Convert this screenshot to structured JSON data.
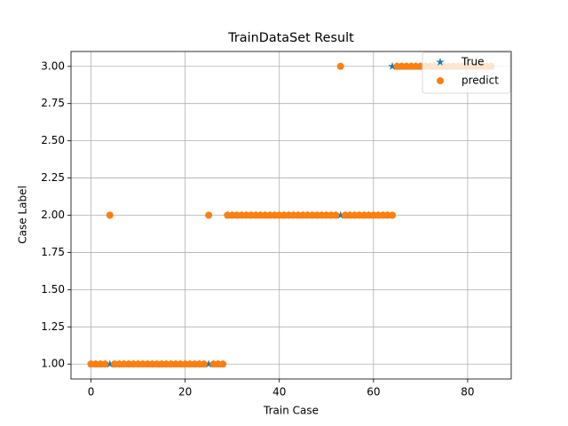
{
  "chart_data": {
    "type": "scatter",
    "title": "TrainDataSet Result",
    "x_label": "Train Case",
    "y_label": "Case Label",
    "x": [
      0,
      1,
      2,
      3,
      4,
      5,
      6,
      7,
      8,
      9,
      10,
      11,
      12,
      13,
      14,
      15,
      16,
      17,
      18,
      19,
      20,
      21,
      22,
      23,
      24,
      25,
      26,
      27,
      28,
      29,
      30,
      31,
      32,
      33,
      34,
      35,
      36,
      37,
      38,
      39,
      40,
      41,
      42,
      43,
      44,
      45,
      46,
      47,
      48,
      49,
      50,
      51,
      52,
      53,
      54,
      55,
      56,
      57,
      58,
      59,
      60,
      61,
      62,
      63,
      64,
      65,
      66,
      67,
      68,
      69,
      70,
      71,
      72,
      73,
      74,
      75,
      76,
      77,
      78,
      79,
      80,
      81,
      82,
      83,
      84,
      85
    ],
    "series": [
      {
        "name": "True",
        "color": "#1f77b4",
        "marker": "star",
        "values": [
          1,
          1,
          1,
          1,
          1,
          1,
          1,
          1,
          1,
          1,
          1,
          1,
          1,
          1,
          1,
          1,
          1,
          1,
          1,
          1,
          1,
          1,
          1,
          1,
          1,
          1,
          1,
          1,
          1,
          2,
          2,
          2,
          2,
          2,
          2,
          2,
          2,
          2,
          2,
          2,
          2,
          2,
          2,
          2,
          2,
          2,
          2,
          2,
          2,
          2,
          2,
          2,
          2,
          2,
          2,
          2,
          2,
          2,
          2,
          2,
          2,
          2,
          2,
          2,
          3,
          3,
          3,
          3,
          3,
          3,
          3,
          3,
          3,
          3,
          3,
          3,
          3,
          3,
          3,
          3,
          3,
          3,
          3,
          3,
          3,
          3
        ]
      },
      {
        "name": "predict",
        "color": "#ff7f0e",
        "marker": "circle",
        "values": [
          1,
          1,
          1,
          1,
          2,
          1,
          1,
          1,
          1,
          1,
          1,
          1,
          1,
          1,
          1,
          1,
          1,
          1,
          1,
          1,
          1,
          1,
          1,
          1,
          1,
          2,
          1,
          1,
          1,
          2,
          2,
          2,
          2,
          2,
          2,
          2,
          2,
          2,
          2,
          2,
          2,
          2,
          2,
          2,
          2,
          2,
          2,
          2,
          2,
          2,
          2,
          2,
          2,
          3,
          2,
          2,
          2,
          2,
          2,
          2,
          2,
          2,
          2,
          2,
          2,
          3,
          3,
          3,
          3,
          3,
          3,
          3,
          3,
          3,
          3,
          3,
          3,
          3,
          3,
          3,
          3,
          3,
          3,
          3,
          3,
          3
        ]
      }
    ],
    "xlim": [
      -4.25,
      89.25
    ],
    "ylim": [
      0.9,
      3.1
    ],
    "xticks": [
      0,
      20,
      40,
      60,
      80
    ],
    "yticks": [
      {
        "value": 1,
        "label": "1.00"
      },
      {
        "value": 1.25,
        "label": "1.25"
      },
      {
        "value": 1.5,
        "label": "1.50"
      },
      {
        "value": 1.75,
        "label": "1.75"
      },
      {
        "value": 2,
        "label": "2.00"
      },
      {
        "value": 2.25,
        "label": "2.25"
      },
      {
        "value": 2.5,
        "label": "2.50"
      },
      {
        "value": 2.75,
        "label": "2.75"
      },
      {
        "value": 3,
        "label": "3.00"
      }
    ],
    "grid": true,
    "legend": "upper right"
  }
}
